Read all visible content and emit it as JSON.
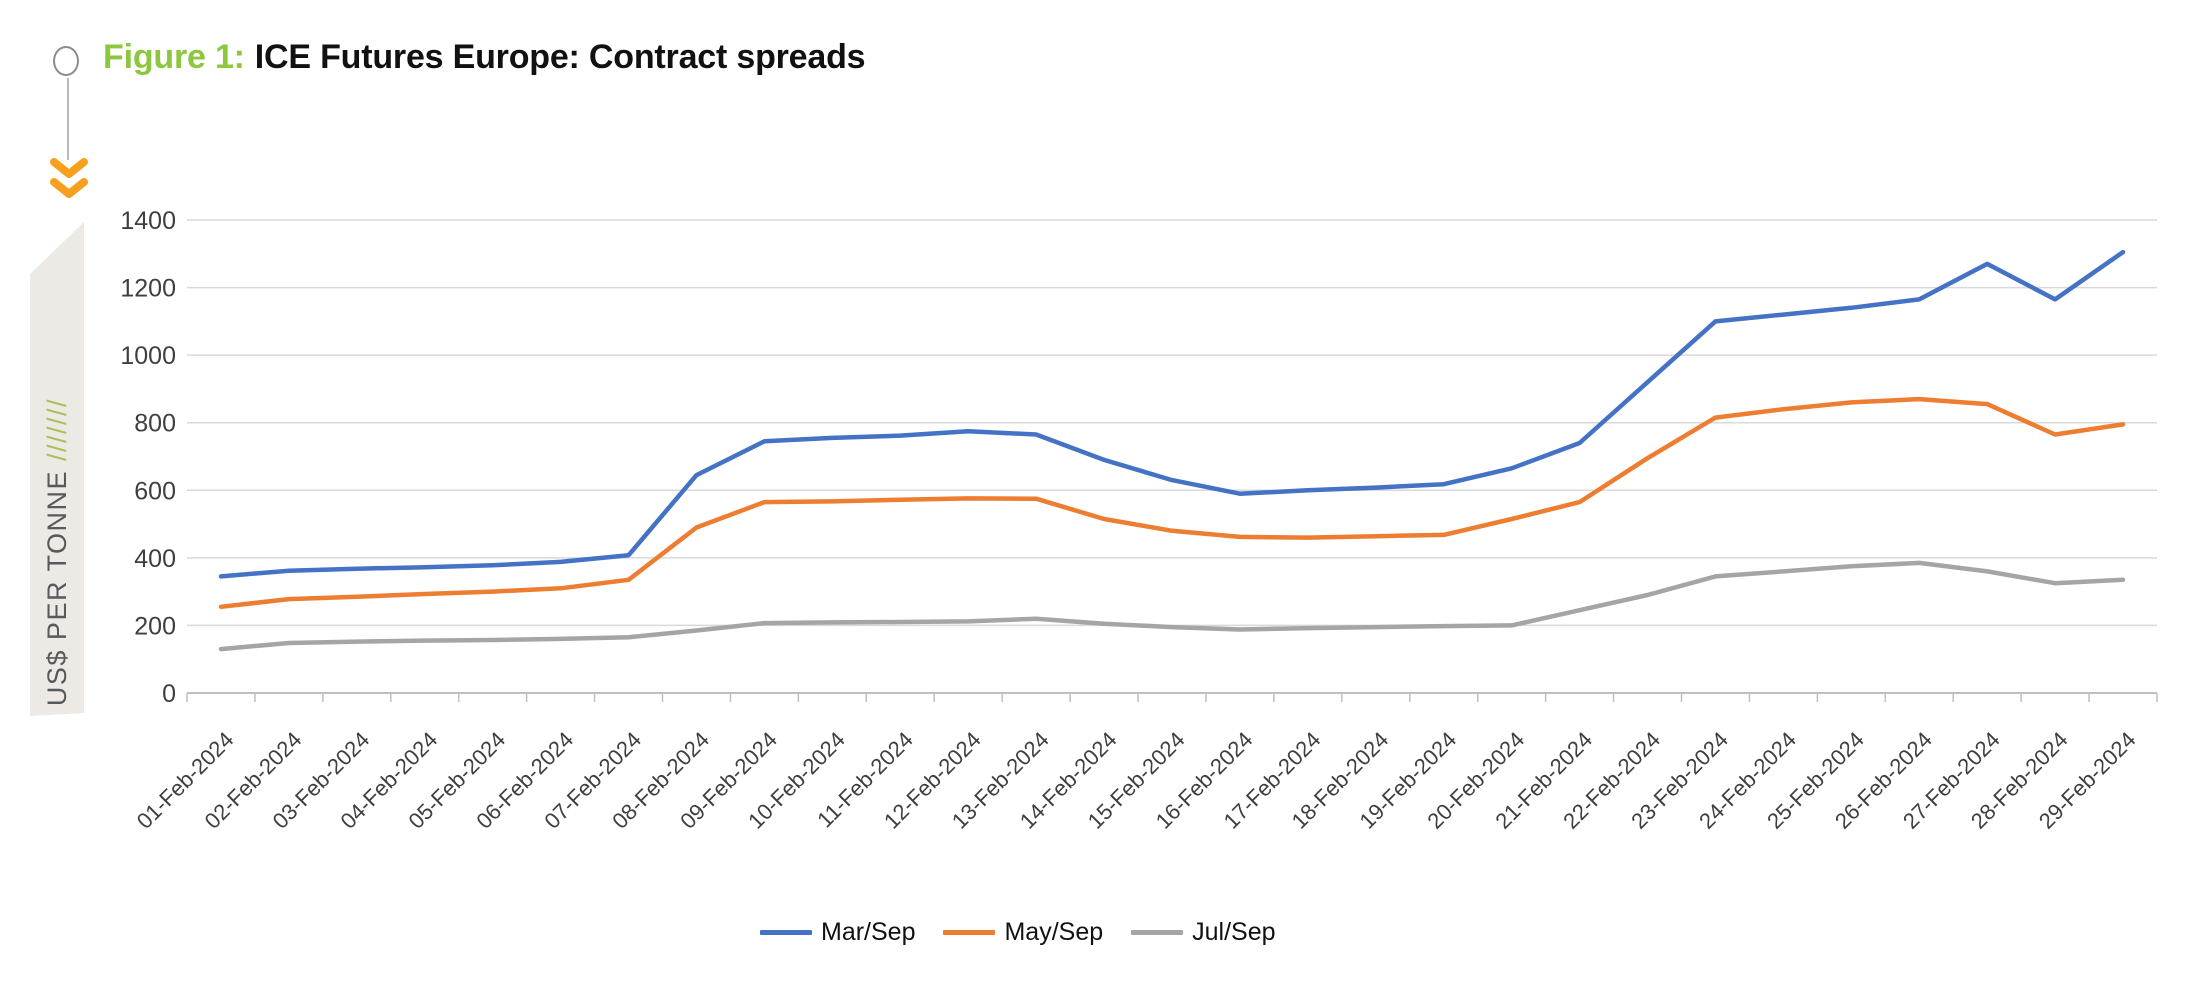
{
  "header": {
    "figure_label": "Figure 1:",
    "title": "ICE Futures Europe: Contract spreads"
  },
  "side_banner": {
    "text": "US$ PER TONNE ",
    "slashes": "///////"
  },
  "colors": {
    "accent_green": "#8dc63f",
    "chevron_orange": "#f6a01e",
    "banner_slash_green": "#abc05b",
    "series_blue": "#4472c4",
    "series_orange": "#ed7d31",
    "series_gray": "#a5a5a5"
  },
  "chart_data": {
    "type": "line",
    "title": "ICE Futures Europe: Contract spreads",
    "xlabel": "",
    "ylabel": "US$ PER TONNE",
    "ylim": [
      0,
      1400
    ],
    "ytick_step": 200,
    "grid": true,
    "legend_position": "bottom",
    "categories": [
      "01-Feb-2024",
      "02-Feb-2024",
      "03-Feb-2024",
      "04-Feb-2024",
      "05-Feb-2024",
      "06-Feb-2024",
      "07-Feb-2024",
      "08-Feb-2024",
      "09-Feb-2024",
      "10-Feb-2024",
      "11-Feb-2024",
      "12-Feb-2024",
      "13-Feb-2024",
      "14-Feb-2024",
      "15-Feb-2024",
      "16-Feb-2024",
      "17-Feb-2024",
      "18-Feb-2024",
      "19-Feb-2024",
      "20-Feb-2024",
      "21-Feb-2024",
      "22-Feb-2024",
      "23-Feb-2024",
      "24-Feb-2024",
      "25-Feb-2024",
      "26-Feb-2024",
      "27-Feb-2024",
      "28-Feb-2024",
      "29-Feb-2024"
    ],
    "series": [
      {
        "name": "Mar/Sep",
        "color": "#4472c4",
        "values": [
          345,
          362,
          368,
          372,
          378,
          388,
          408,
          645,
          745,
          755,
          762,
          775,
          765,
          690,
          630,
          590,
          600,
          608,
          618,
          665,
          740,
          920,
          1100,
          1120,
          1140,
          1165,
          1270,
          1165,
          1305
        ]
      },
      {
        "name": "May/Sep",
        "color": "#ed7d31",
        "values": [
          255,
          278,
          285,
          293,
          300,
          310,
          335,
          490,
          565,
          567,
          572,
          576,
          575,
          515,
          480,
          462,
          460,
          464,
          468,
          515,
          565,
          695,
          815,
          840,
          860,
          870,
          855,
          765,
          795
        ]
      },
      {
        "name": "Jul/Sep",
        "color": "#a5a5a5",
        "values": [
          130,
          148,
          152,
          155,
          157,
          160,
          165,
          185,
          207,
          209,
          210,
          212,
          220,
          205,
          195,
          188,
          192,
          195,
          198,
          200,
          245,
          290,
          345,
          360,
          375,
          385,
          360,
          325,
          335
        ]
      }
    ]
  }
}
